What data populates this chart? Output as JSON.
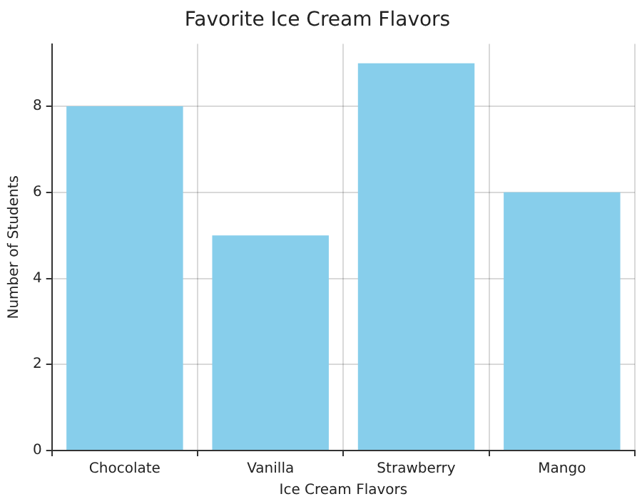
{
  "chart_data": {
    "type": "bar",
    "title": "Favorite Ice Cream Flavors",
    "xlabel": "Ice Cream Flavors",
    "ylabel": "Number of Students",
    "categories": [
      "Chocolate",
      "Vanilla",
      "Strawberry",
      "Mango"
    ],
    "values": [
      8,
      5,
      9,
      6
    ],
    "color": "#87ceeb",
    "ylim": [
      0,
      9.45
    ],
    "yticks": [
      0,
      2,
      4,
      6,
      8
    ],
    "grid": true
  }
}
